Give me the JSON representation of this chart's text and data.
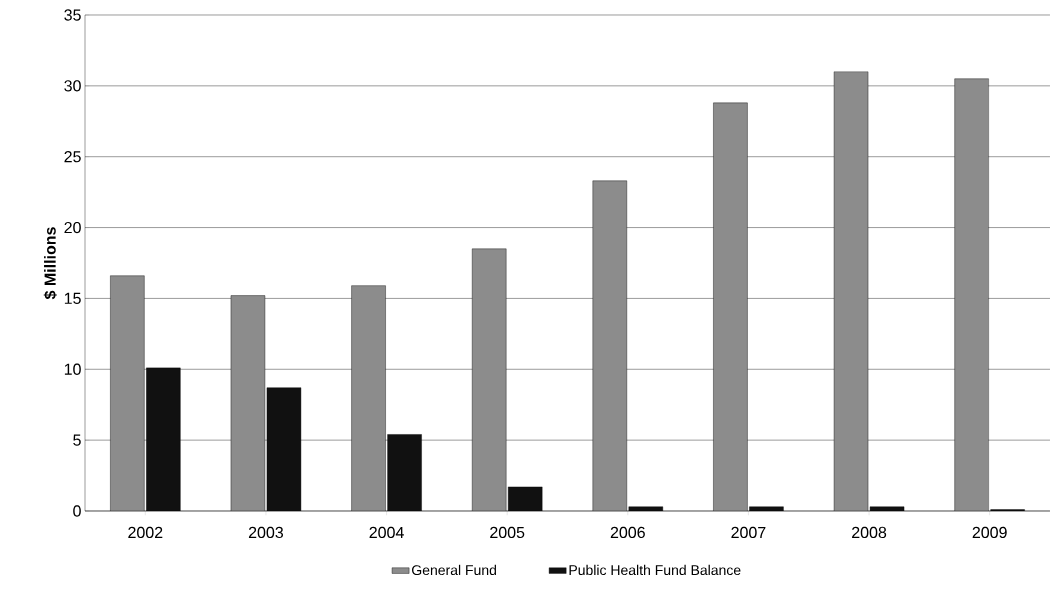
{
  "chart_data": {
    "type": "bar",
    "ylabel": "$ Millions",
    "categories": [
      "2002",
      "2003",
      "2004",
      "2005",
      "2006",
      "2007",
      "2008",
      "2009"
    ],
    "series": [
      {
        "name": "General Fund",
        "color": "#8c8c8c",
        "values": [
          16.6,
          15.2,
          15.9,
          18.5,
          23.3,
          28.8,
          31.0,
          30.5
        ]
      },
      {
        "name": "Public Health Fund Balance",
        "color": "#111111",
        "values": [
          10.1,
          8.7,
          5.4,
          1.7,
          0.3,
          0.3,
          0.3,
          0.1
        ]
      }
    ],
    "ylim": [
      0,
      35
    ],
    "yticks": [
      0,
      5,
      10,
      15,
      20,
      25,
      30,
      35
    ],
    "grid": "y",
    "legend": "bottom"
  }
}
